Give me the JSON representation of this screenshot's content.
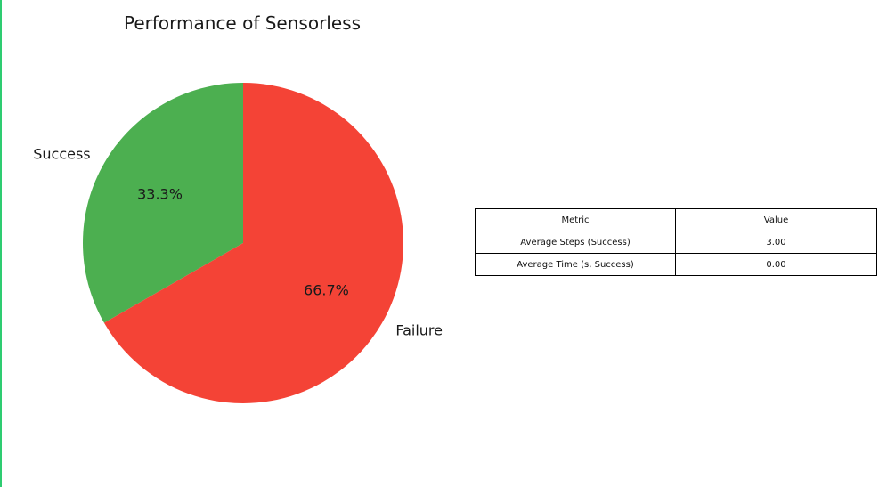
{
  "chart_data": [
    {
      "type": "pie",
      "title": "Performance of Sensorless",
      "slices": [
        {
          "label": "Success",
          "value": 33.3,
          "pct_label": "33.3%",
          "color": "#4caf50"
        },
        {
          "label": "Failure",
          "value": 66.7,
          "pct_label": "66.7%",
          "color": "#f44336"
        }
      ],
      "start_angle_deg": 90,
      "direction": "counterclockwise"
    },
    {
      "type": "table",
      "columns": [
        "Metric",
        "Value"
      ],
      "rows": [
        [
          "Average Steps (Success)",
          "3.00"
        ],
        [
          "Average Time (s, Success)",
          "0.00"
        ]
      ]
    }
  ]
}
